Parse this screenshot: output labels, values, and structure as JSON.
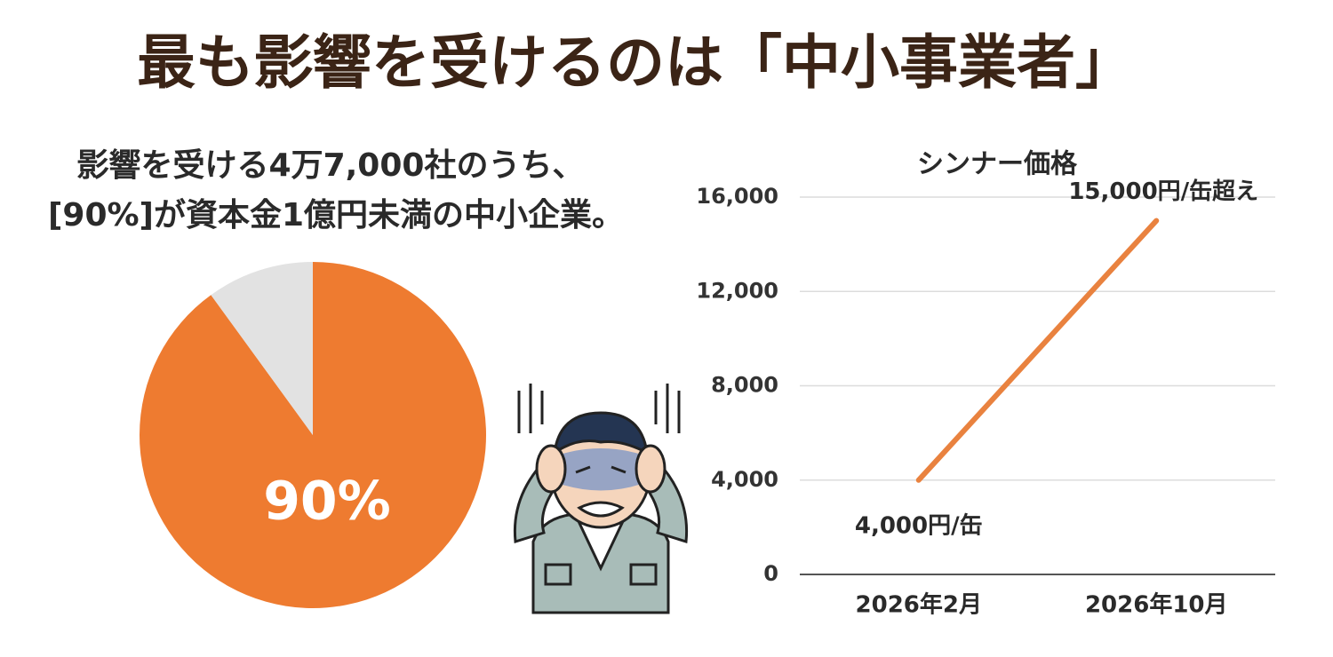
{
  "title": "最も影響を受けるのは「中小事業者」",
  "subtitle": [
    "影響を受ける4万7,000社のうち、",
    "[90%]が資本金1億円未満の中小企業。"
  ],
  "chart_data": [
    {
      "type": "pie",
      "slices": [
        {
          "value": 90,
          "color": "#ee7b30",
          "label": "90%"
        },
        {
          "value": 10,
          "color": "#e2e2e2"
        }
      ]
    },
    {
      "type": "line",
      "title": "シンナー価格",
      "categories": [
        "2026年2月",
        "2026年10月"
      ],
      "series": [
        {
          "color": "#e9823f",
          "values": [
            4000,
            15000
          ],
          "value_labels": [
            "4,000円/缶",
            "15,000円/缶超え"
          ]
        }
      ],
      "ylim": [
        0,
        16000
      ],
      "yticks": [
        0,
        {
          "value": 4000,
          "label": "4,000"
        },
        {
          "value": 8000,
          "label": "8,000"
        },
        {
          "value": 12000,
          "label": "12,000"
        },
        {
          "value": 16000,
          "label": "16,000"
        }
      ],
      "grid": true
    }
  ]
}
